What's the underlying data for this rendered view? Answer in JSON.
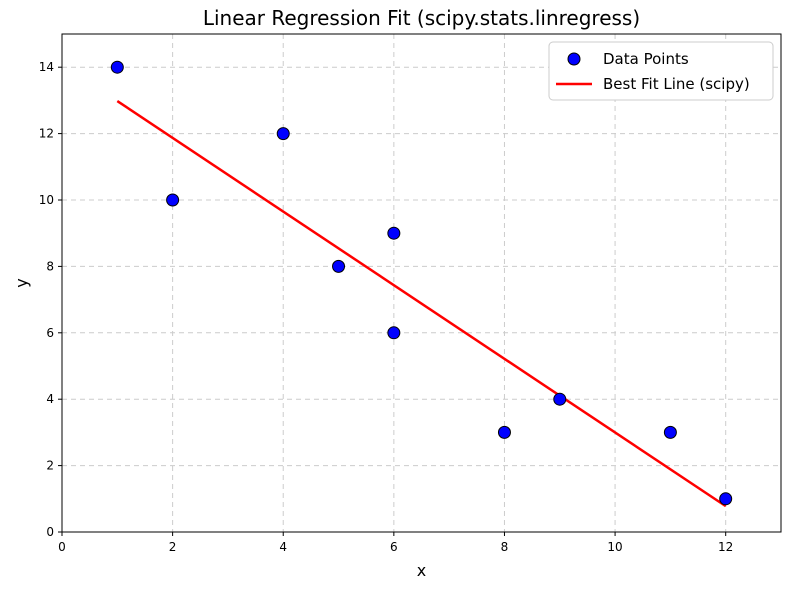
{
  "chart_data": {
    "type": "scatter",
    "title": "Linear Regression Fit (scipy.stats.linregress)",
    "xlabel": "x",
    "ylabel": "y",
    "xlim": [
      0,
      13
    ],
    "ylim": [
      0,
      15
    ],
    "xticks": [
      0,
      2,
      4,
      6,
      8,
      10,
      12
    ],
    "yticks": [
      0,
      2,
      4,
      6,
      8,
      10,
      12,
      14
    ],
    "grid": true,
    "legend_position": "top-right",
    "series": [
      {
        "name": "Data Points",
        "kind": "scatter",
        "color": "#0000ff",
        "edge_color": "#000000",
        "x": [
          1,
          2,
          4,
          5,
          6,
          6,
          8,
          9,
          11,
          12
        ],
        "y": [
          14,
          10,
          12,
          8,
          9,
          6,
          3,
          4,
          3,
          1
        ]
      },
      {
        "name": "Best Fit Line (scipy)",
        "kind": "line",
        "color": "#ff0000",
        "x": [
          1,
          12
        ],
        "y": [
          12.98,
          0.78
        ]
      }
    ]
  }
}
